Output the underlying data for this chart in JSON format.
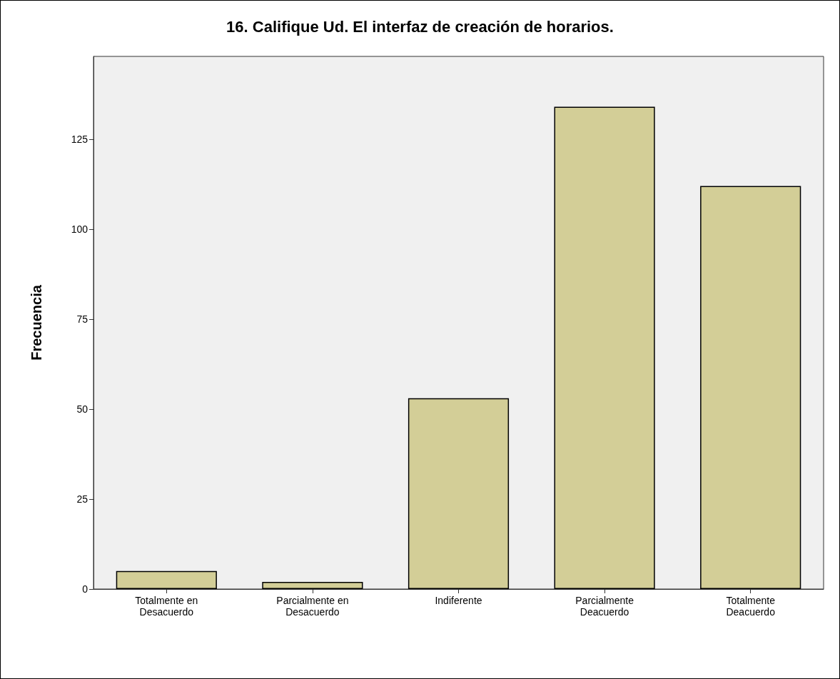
{
  "chart_data": {
    "type": "bar",
    "title": "16. Califique Ud. El interfaz de creación de horarios.",
    "ylabel": "Frecuencia",
    "categories": [
      "Totalmente en\nDesacuerdo",
      "Parcialmente en\nDesacuerdo",
      "Indiferente",
      "Parcialmente\nDeacuerdo",
      "Totalmente\nDeacuerdo"
    ],
    "values": [
      5,
      2,
      53,
      134,
      112
    ],
    "color": "#d3ce97",
    "ylim": [
      0,
      148
    ],
    "yticks": [
      0,
      25,
      50,
      75,
      100,
      125
    ],
    "grid": false
  }
}
